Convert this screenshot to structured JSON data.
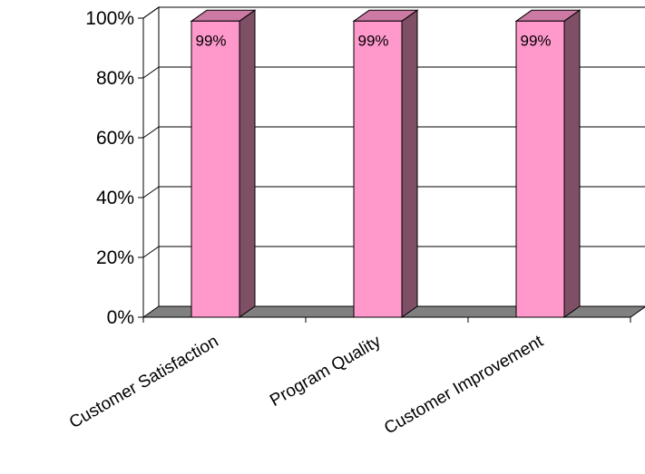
{
  "chart_data": {
    "type": "bar",
    "categories": [
      "Customer Satisfaction",
      "Program Quality",
      "Customer Improvement"
    ],
    "values": [
      99,
      99,
      99
    ],
    "data_labels": [
      "99%",
      "99%",
      "99%"
    ],
    "ylim": [
      0,
      100
    ],
    "yticks": [
      0,
      20,
      40,
      60,
      80,
      100
    ],
    "ytick_labels": [
      "0%",
      "20%",
      "40%",
      "60%",
      "80%",
      "100%"
    ],
    "title": "",
    "xlabel": "",
    "ylabel": "",
    "grid": true,
    "legend": "none",
    "colors": {
      "bar_front": "#ff99cc",
      "bar_side": "#7f4f66",
      "bar_top": "#cc7aa3",
      "floor": "#808080",
      "gridline": "#000000"
    }
  }
}
